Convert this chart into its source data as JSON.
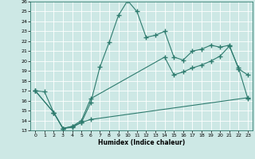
{
  "xlabel": "Humidex (Indice chaleur)",
  "background_color": "#cde8e5",
  "line_color": "#2e7b6e",
  "xlim": [
    -0.5,
    23.5
  ],
  "ylim": [
    13,
    26
  ],
  "xticks": [
    0,
    1,
    2,
    3,
    4,
    5,
    6,
    7,
    8,
    9,
    10,
    11,
    12,
    13,
    14,
    15,
    16,
    17,
    18,
    19,
    20,
    21,
    22,
    23
  ],
  "yticks": [
    13,
    14,
    15,
    16,
    17,
    18,
    19,
    20,
    21,
    22,
    23,
    24,
    25,
    26
  ],
  "curve1_x": [
    0,
    1,
    2,
    3,
    4,
    5,
    6,
    7,
    8,
    9,
    10,
    11,
    12,
    13,
    14,
    15,
    16,
    17,
    18,
    19,
    20,
    21,
    22,
    23
  ],
  "curve1_y": [
    17.0,
    16.9,
    14.8,
    13.2,
    13.3,
    13.8,
    15.8,
    19.4,
    21.9,
    24.6,
    26.1,
    25.0,
    22.4,
    22.6,
    23.0,
    20.4,
    20.1,
    21.0,
    21.2,
    21.6,
    21.4,
    21.6,
    19.2,
    18.6
  ],
  "curve2_x": [
    0,
    2,
    3,
    4,
    5,
    6,
    14,
    15,
    16,
    17,
    18,
    19,
    20,
    21,
    22,
    23
  ],
  "curve2_y": [
    17.0,
    14.8,
    13.2,
    13.4,
    14.0,
    16.2,
    20.4,
    18.6,
    18.9,
    19.3,
    19.6,
    20.0,
    20.5,
    21.5,
    19.3,
    16.2
  ],
  "curve3_x": [
    0,
    2,
    3,
    4,
    5,
    6,
    23
  ],
  "curve3_y": [
    17.0,
    14.8,
    13.2,
    13.4,
    13.8,
    14.1,
    16.3
  ]
}
